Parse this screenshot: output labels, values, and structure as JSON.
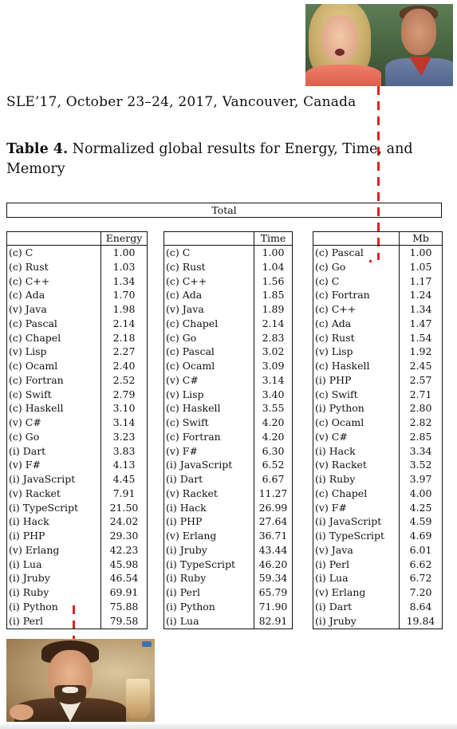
{
  "header": {
    "conference": "SLE’17, October 23–24, 2017, Vancouver, Canada"
  },
  "caption": {
    "label": "Table 4.",
    "text": " Normalized global results for Energy, Time, and Memory"
  },
  "total_label": "Total",
  "tables": {
    "energy": {
      "header": "Energy",
      "rows": [
        {
          "name": "(c) C",
          "value": "1.00"
        },
        {
          "name": "(c) Rust",
          "value": "1.03"
        },
        {
          "name": "(c) C++",
          "value": "1.34"
        },
        {
          "name": "(c) Ada",
          "value": "1.70"
        },
        {
          "name": "(v) Java",
          "value": "1.98"
        },
        {
          "name": "(c) Pascal",
          "value": "2.14"
        },
        {
          "name": "(c) Chapel",
          "value": "2.18"
        },
        {
          "name": "(v) Lisp",
          "value": "2.27"
        },
        {
          "name": "(c) Ocaml",
          "value": "2.40"
        },
        {
          "name": "(c) Fortran",
          "value": "2.52"
        },
        {
          "name": "(c) Swift",
          "value": "2.79"
        },
        {
          "name": "(c) Haskell",
          "value": "3.10"
        },
        {
          "name": "(v) C#",
          "value": "3.14"
        },
        {
          "name": "(c) Go",
          "value": "3.23"
        },
        {
          "name": "(i) Dart",
          "value": "3.83"
        },
        {
          "name": "(v) F#",
          "value": "4.13"
        },
        {
          "name": "(i) JavaScript",
          "value": "4.45"
        },
        {
          "name": "(v) Racket",
          "value": "7.91"
        },
        {
          "name": "(i) TypeScript",
          "value": "21.50"
        },
        {
          "name": "(i) Hack",
          "value": "24.02"
        },
        {
          "name": "(i) PHP",
          "value": "29.30"
        },
        {
          "name": "(v) Erlang",
          "value": "42.23"
        },
        {
          "name": "(i) Lua",
          "value": "45.98"
        },
        {
          "name": "(i) Jruby",
          "value": "46.54"
        },
        {
          "name": "(i) Ruby",
          "value": "69.91"
        },
        {
          "name": "(i) Python",
          "value": "75.88"
        },
        {
          "name": "(i) Perl",
          "value": "79.58"
        }
      ]
    },
    "time": {
      "header": "Time",
      "rows": [
        {
          "name": "(c) C",
          "value": "1.00"
        },
        {
          "name": "(c) Rust",
          "value": "1.04"
        },
        {
          "name": "(c) C++",
          "value": "1.56"
        },
        {
          "name": "(c) Ada",
          "value": "1.85"
        },
        {
          "name": "(v) Java",
          "value": "1.89"
        },
        {
          "name": "(c) Chapel",
          "value": "2.14"
        },
        {
          "name": "(c) Go",
          "value": "2.83"
        },
        {
          "name": "(c) Pascal",
          "value": "3.02"
        },
        {
          "name": "(c) Ocaml",
          "value": "3.09"
        },
        {
          "name": "(v) C#",
          "value": "3.14"
        },
        {
          "name": "(v) Lisp",
          "value": "3.40"
        },
        {
          "name": "(c) Haskell",
          "value": "3.55"
        },
        {
          "name": "(c) Swift",
          "value": "4.20"
        },
        {
          "name": "(c) Fortran",
          "value": "4.20"
        },
        {
          "name": "(v) F#",
          "value": "6.30"
        },
        {
          "name": "(i) JavaScript",
          "value": "6.52"
        },
        {
          "name": "(i) Dart",
          "value": "6.67"
        },
        {
          "name": "(v) Racket",
          "value": "11.27"
        },
        {
          "name": "(i) Hack",
          "value": "26.99"
        },
        {
          "name": "(i) PHP",
          "value": "27.64"
        },
        {
          "name": "(v) Erlang",
          "value": "36.71"
        },
        {
          "name": "(i) Jruby",
          "value": "43.44"
        },
        {
          "name": "(i) TypeScript",
          "value": "46.20"
        },
        {
          "name": "(i) Ruby",
          "value": "59.34"
        },
        {
          "name": "(i) Perl",
          "value": "65.79"
        },
        {
          "name": "(i) Python",
          "value": "71.90"
        },
        {
          "name": "(i) Lua",
          "value": "82.91"
        }
      ]
    },
    "memory": {
      "header": "Mb",
      "rows": [
        {
          "name": "(c) Pascal",
          "value": "1.00"
        },
        {
          "name": "(c) Go",
          "value": "1.05"
        },
        {
          "name": "(c) C",
          "value": "1.17"
        },
        {
          "name": "(c) Fortran",
          "value": "1.24"
        },
        {
          "name": "(c) C++",
          "value": "1.34"
        },
        {
          "name": "(c) Ada",
          "value": "1.47"
        },
        {
          "name": "(c) Rust",
          "value": "1.54"
        },
        {
          "name": "(v) Lisp",
          "value": "1.92"
        },
        {
          "name": "(c) Haskell",
          "value": "2.45"
        },
        {
          "name": "(i) PHP",
          "value": "2.57"
        },
        {
          "name": "(c) Swift",
          "value": "2.71"
        },
        {
          "name": "(i) Python",
          "value": "2.80"
        },
        {
          "name": "(c) Ocaml",
          "value": "2.82"
        },
        {
          "name": "(v) C#",
          "value": "2.85"
        },
        {
          "name": "(i) Hack",
          "value": "3.34"
        },
        {
          "name": "(v) Racket",
          "value": "3.52"
        },
        {
          "name": "(i) Ruby",
          "value": "3.97"
        },
        {
          "name": "(c) Chapel",
          "value": "4.00"
        },
        {
          "name": "(v) F#",
          "value": "4.25"
        },
        {
          "name": "(i) JavaScript",
          "value": "4.59"
        },
        {
          "name": "(i) TypeScript",
          "value": "4.69"
        },
        {
          "name": "(v) Java",
          "value": "6.01"
        },
        {
          "name": "(i) Perl",
          "value": "6.62"
        },
        {
          "name": "(i) Lua",
          "value": "6.72"
        },
        {
          "name": "(v) Erlang",
          "value": "7.20"
        },
        {
          "name": "(i) Dart",
          "value": "8.64"
        },
        {
          "name": "(i) Jruby",
          "value": "19.84"
        }
      ]
    }
  },
  "colors": {
    "connector": "#e3201e"
  }
}
